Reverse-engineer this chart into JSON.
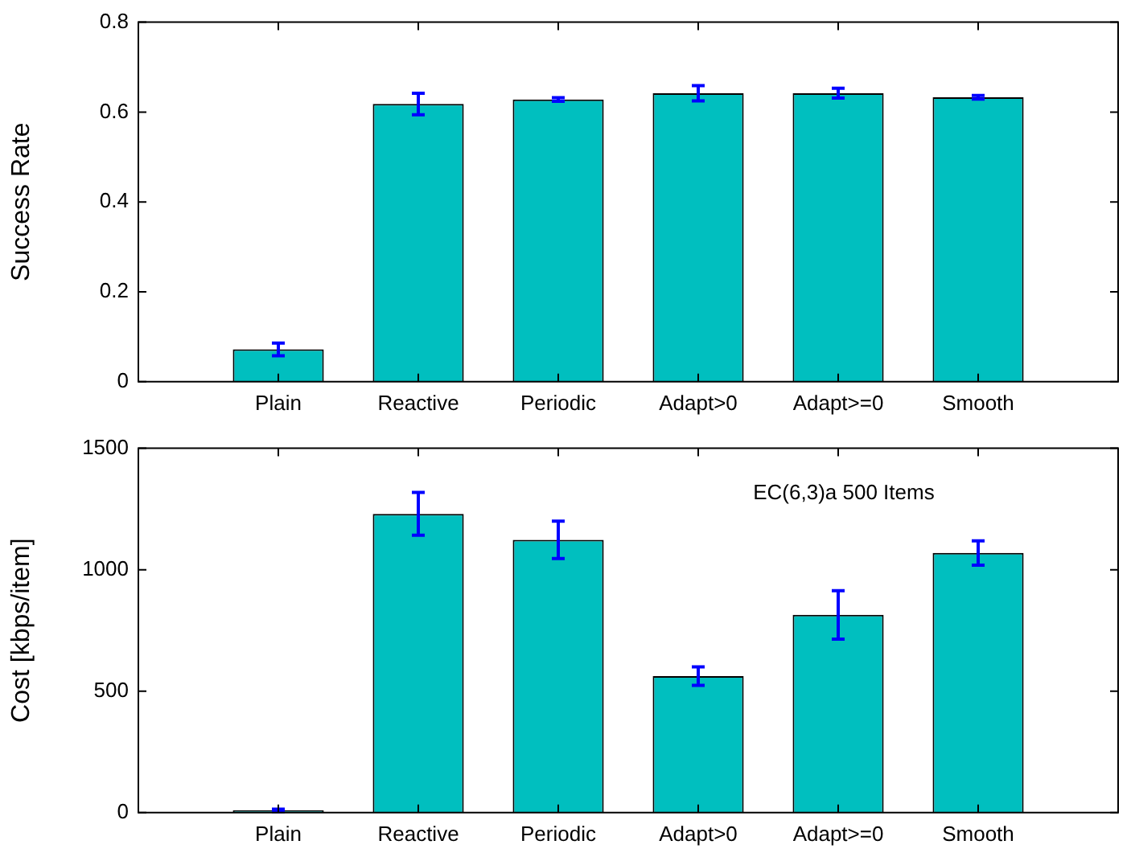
{
  "chart_data": [
    {
      "type": "bar",
      "ylabel": "Success Rate",
      "categories": [
        null,
        "Plain",
        "Reactive",
        "Periodic",
        "Adapt>0",
        "Adapt>=0",
        "Smooth",
        null
      ],
      "values": [
        null,
        0.072,
        0.618,
        0.628,
        0.642,
        0.642,
        0.633,
        null
      ],
      "errors": [
        null,
        0.014,
        0.024,
        0.004,
        0.017,
        0.011,
        0.004,
        null
      ],
      "color": "#00bfbf",
      "ylim": [
        0,
        0.8
      ],
      "yticks": [
        0,
        0.2,
        0.4,
        0.6,
        0.8
      ],
      "grid": false,
      "legend": false
    },
    {
      "type": "bar",
      "ylabel": "Cost [kbps/item]",
      "categories": [
        null,
        "Plain",
        "Reactive",
        "Periodic",
        "Adapt>0",
        "Adapt>=0",
        "Smooth",
        null
      ],
      "values": [
        null,
        9,
        1230,
        1123,
        562,
        814,
        1069,
        null
      ],
      "errors": [
        null,
        5,
        88,
        77,
        38,
        100,
        50,
        null
      ],
      "color": "#00bfbf",
      "ylim": [
        0,
        1500
      ],
      "yticks": [
        0,
        500,
        1000,
        1500
      ],
      "grid": false,
      "legend": false,
      "annotations": [
        "EC(6,3)a 500 Items"
      ]
    }
  ]
}
